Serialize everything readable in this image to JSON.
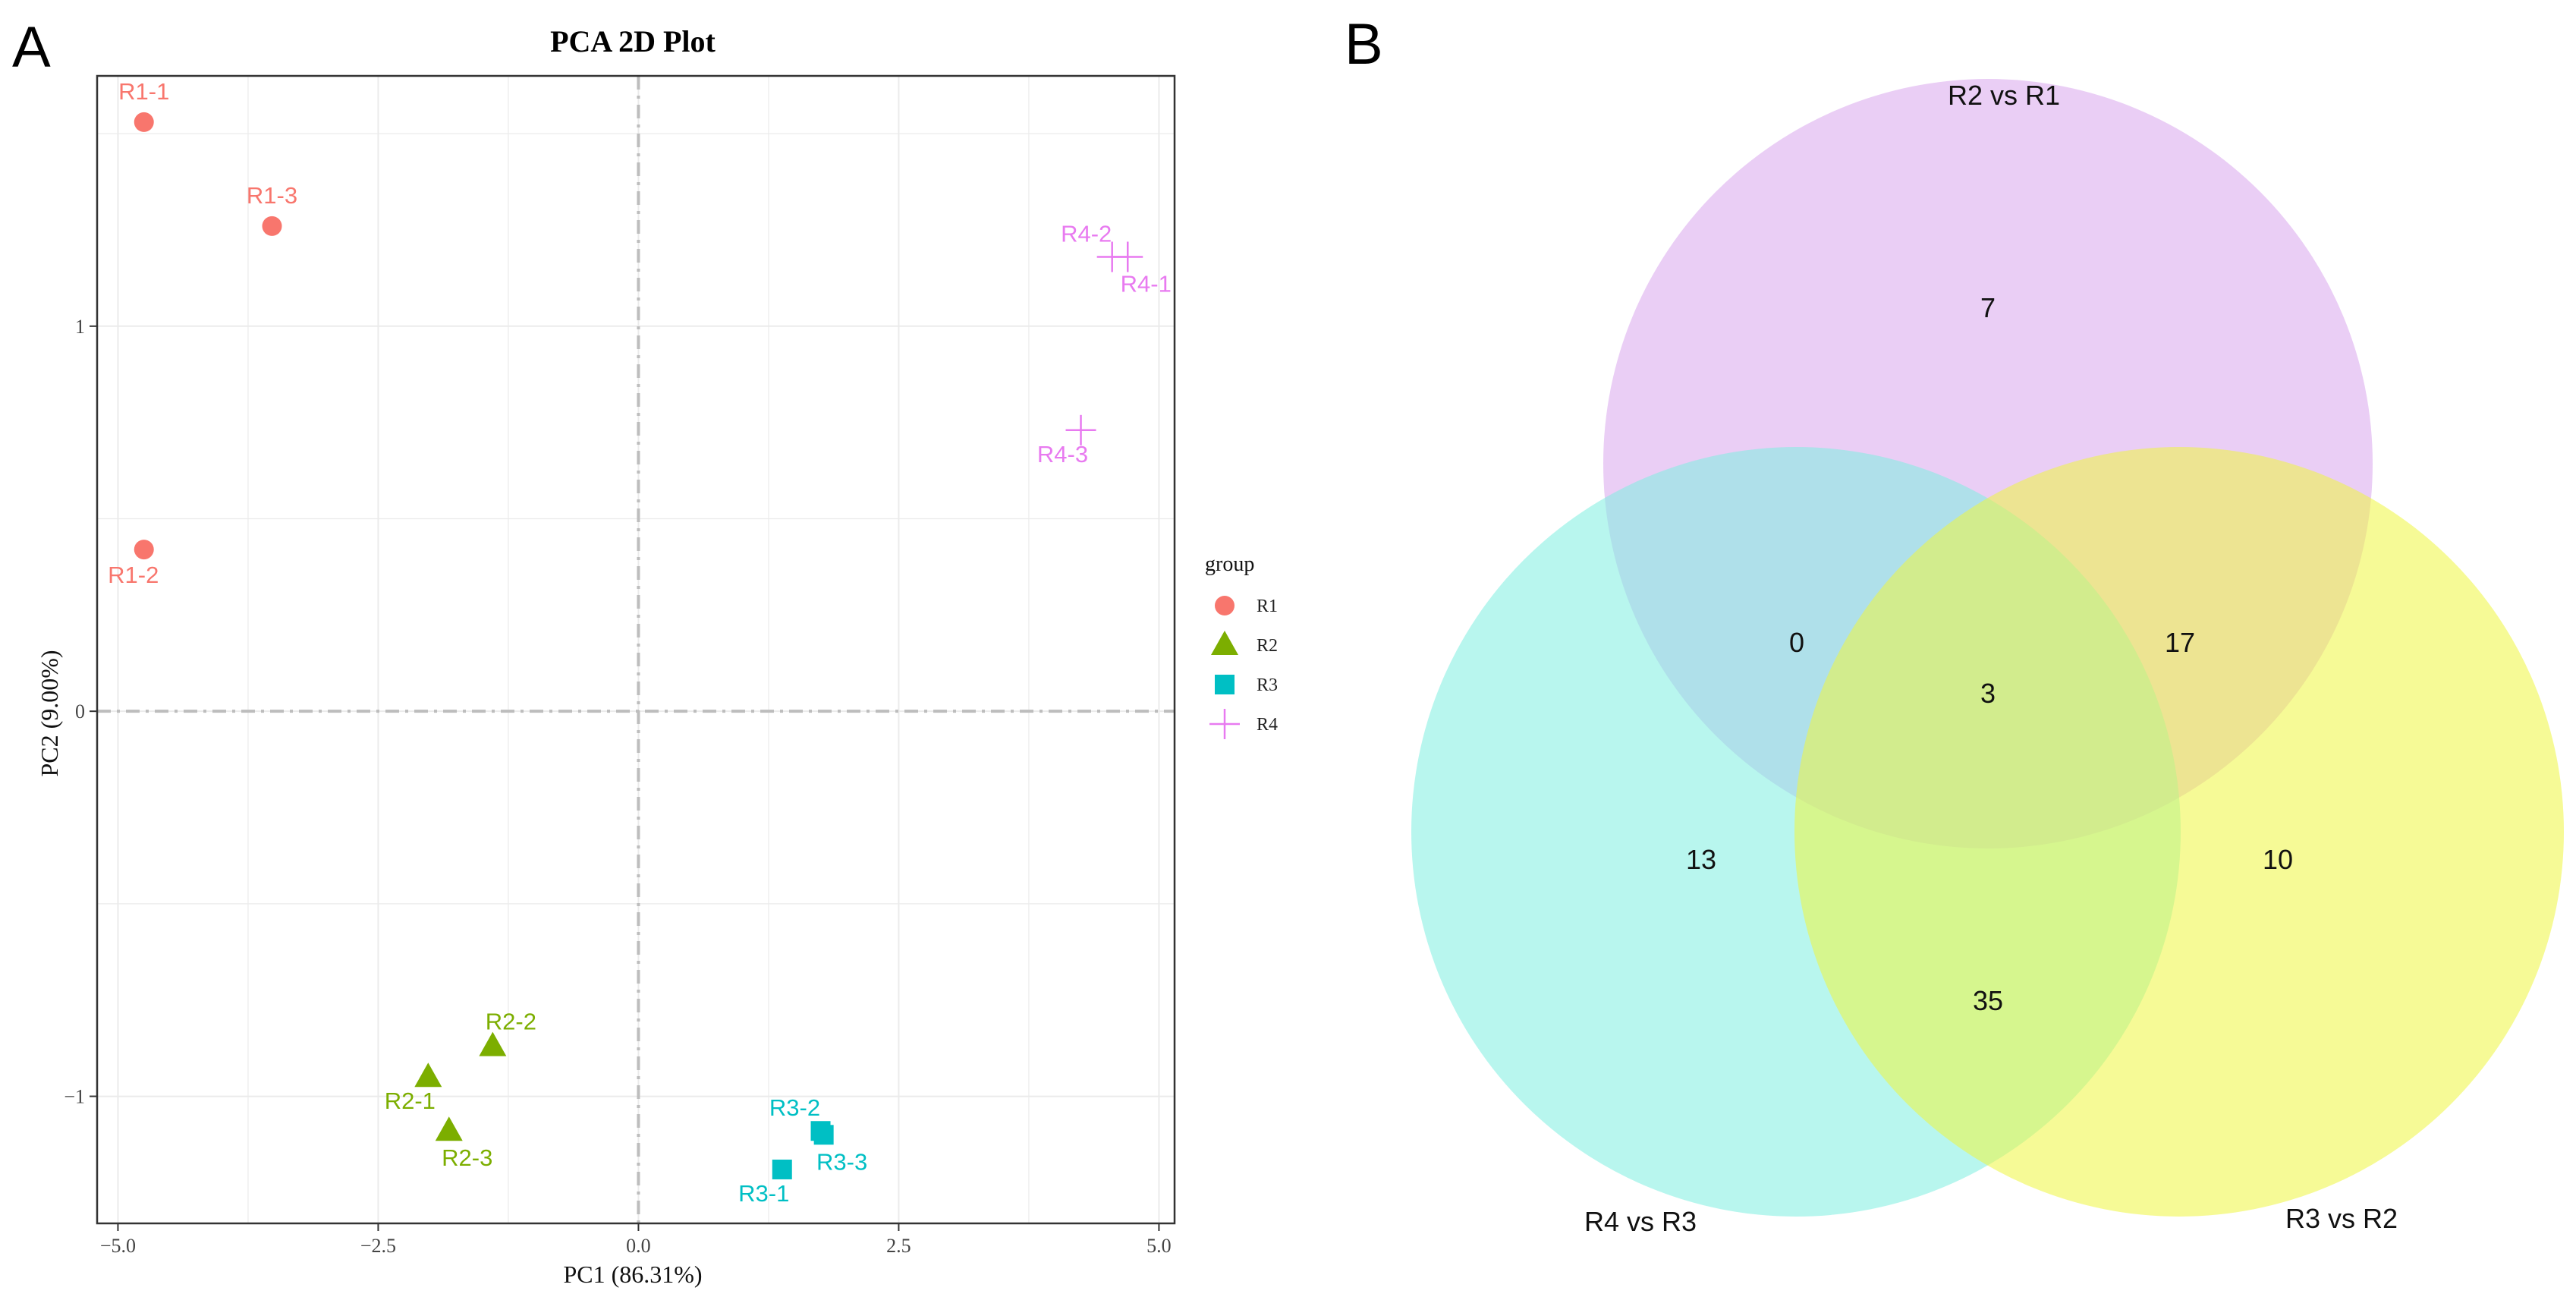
{
  "panels": {
    "a_label": "A",
    "b_label": "B"
  },
  "chart_data": [
    {
      "type": "scatter",
      "title": "PCA  2D  Plot",
      "xlabel": "PC1 (86.31%)",
      "ylabel": "PC2 (9.00%)",
      "xlim": [
        -5.2,
        5.15
      ],
      "ylim": [
        -1.33,
        1.65
      ],
      "xticks": [
        -5.0,
        -2.5,
        0.0,
        2.5,
        5.0
      ],
      "xtick_labels": [
        "−5.0",
        "−2.5",
        "0.0",
        "2.5",
        "5.0"
      ],
      "yticks": [
        -1,
        0,
        1
      ],
      "ytick_labels": [
        "−1",
        "0",
        "1"
      ],
      "grid": true,
      "legend": {
        "title": "group",
        "placement": "right",
        "entries": [
          {
            "name": "R1",
            "shape": "circle",
            "color": "#F8766D"
          },
          {
            "name": "R2",
            "shape": "triangle",
            "color": "#7CAE00"
          },
          {
            "name": "R3",
            "shape": "square",
            "color": "#00BFC4"
          },
          {
            "name": "R4",
            "shape": "plus",
            "color": "#E87AF0"
          }
        ]
      },
      "points": [
        {
          "label": "R1-1",
          "group": "R1",
          "x": -4.75,
          "y": 1.53,
          "label_pos": "above"
        },
        {
          "label": "R1-3",
          "group": "R1",
          "x": -3.52,
          "y": 1.26,
          "label_pos": "above"
        },
        {
          "label": "R1-2",
          "group": "R1",
          "x": -4.75,
          "y": 0.42,
          "label_pos": "below"
        },
        {
          "label": "R2-2",
          "group": "R2",
          "x": -1.4,
          "y": -0.87,
          "label_pos": "above-right"
        },
        {
          "label": "R2-1",
          "group": "R2",
          "x": -2.02,
          "y": -0.95,
          "label_pos": "below-left"
        },
        {
          "label": "R2-3",
          "group": "R2",
          "x": -1.82,
          "y": -1.09,
          "label_pos": "below-right"
        },
        {
          "label": "R3-2",
          "group": "R3",
          "x": 1.75,
          "y": -1.09,
          "label_pos": "above-left"
        },
        {
          "label": "R3-3",
          "group": "R3",
          "x": 1.78,
          "y": -1.1,
          "label_pos": "below-right"
        },
        {
          "label": "R3-1",
          "group": "R3",
          "x": 1.38,
          "y": -1.19,
          "label_pos": "below-left"
        },
        {
          "label": "R4-2",
          "group": "R4",
          "x": 4.55,
          "y": 1.18,
          "label_pos": "above-left"
        },
        {
          "label": "R4-1",
          "group": "R4",
          "x": 4.7,
          "y": 1.18,
          "label_pos": "below-right"
        },
        {
          "label": "R4-3",
          "group": "R4",
          "x": 4.25,
          "y": 0.73,
          "label_pos": "below-left"
        }
      ]
    },
    {
      "type": "venn",
      "sets": [
        {
          "name": "R2  vs  R1",
          "color": "#D9A6EC"
        },
        {
          "name": "R4  vs  R3",
          "color": "#7DEEE0"
        },
        {
          "name": "R3  vs  R2",
          "color": "#EEF53F"
        }
      ],
      "regions": [
        {
          "sets": [
            "R2  vs  R1"
          ],
          "value": 7
        },
        {
          "sets": [
            "R4  vs  R3"
          ],
          "value": 13
        },
        {
          "sets": [
            "R3  vs  R2"
          ],
          "value": 10
        },
        {
          "sets": [
            "R2  vs  R1",
            "R4  vs  R3"
          ],
          "value": 0
        },
        {
          "sets": [
            "R2  vs  R1",
            "R3  vs  R2"
          ],
          "value": 17
        },
        {
          "sets": [
            "R4  vs  R3",
            "R3  vs  R2"
          ],
          "value": 35
        },
        {
          "sets": [
            "R2  vs  R1",
            "R4  vs  R3",
            "R3  vs  R2"
          ],
          "value": 3
        }
      ]
    }
  ]
}
